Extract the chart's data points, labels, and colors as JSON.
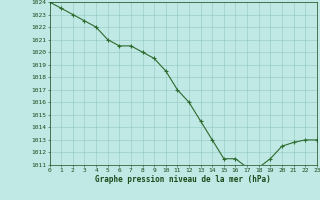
{
  "x": [
    0,
    1,
    2,
    3,
    4,
    5,
    6,
    7,
    8,
    9,
    10,
    11,
    12,
    13,
    14,
    15,
    16,
    17,
    18,
    19,
    20,
    21,
    22,
    23
  ],
  "y": [
    1024.0,
    1023.5,
    1023.0,
    1022.5,
    1022.0,
    1021.0,
    1020.5,
    1020.5,
    1020.0,
    1019.5,
    1018.5,
    1017.0,
    1016.0,
    1014.5,
    1013.0,
    1011.5,
    1011.5,
    1010.8,
    1010.8,
    1011.5,
    1012.5,
    1012.8,
    1013.0,
    1013.0
  ],
  "line_color": "#2d6a2d",
  "marker_color": "#2d6a2d",
  "bg_color": "#c0e8e4",
  "grid_color": "#90c8c0",
  "axis_bg": "#c0e8e4",
  "xlabel": "Graphe pression niveau de la mer (hPa)",
  "xlabel_color": "#1a4a1a",
  "tick_color": "#1a4a1a",
  "ylim_min": 1011,
  "ylim_max": 1024,
  "xlim_min": 0,
  "xlim_max": 23,
  "ytick_step": 1,
  "xtick_step": 1,
  "title_fontsize": 5.5,
  "label_fontsize": 6.0
}
